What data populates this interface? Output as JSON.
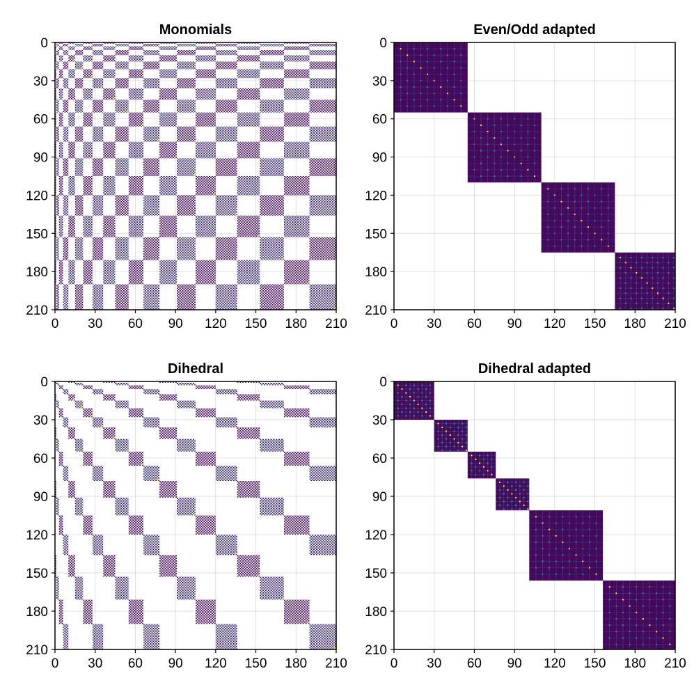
{
  "chart_data": [
    {
      "type": "heatmap",
      "title": "Monomials",
      "matrix_size": 210,
      "xlim": [
        0,
        210
      ],
      "ylim": [
        0,
        210
      ],
      "xticks": [
        "0",
        "30",
        "60",
        "90",
        "120",
        "150",
        "180",
        "210"
      ],
      "yticks": [
        "0",
        "30",
        "60",
        "90",
        "120",
        "150",
        "180",
        "210"
      ],
      "y_axis_reversed": true,
      "grid": true,
      "pattern": "checkerboard of nonzero blocks; block edges at 0,1,3,6,10,15,21,28,36,45,55,66,78,91,105,120,136,153,171,190,210; entries nonzero where parity of block row and block column match",
      "block_boundaries": [
        0,
        1,
        3,
        6,
        10,
        15,
        21,
        28,
        36,
        45,
        55,
        66,
        78,
        91,
        105,
        120,
        136,
        153,
        171,
        190,
        210
      ]
    },
    {
      "type": "heatmap",
      "title": "Even/Odd adapted",
      "matrix_size": 210,
      "xlim": [
        0,
        210
      ],
      "ylim": [
        0,
        210
      ],
      "xticks": [
        "0",
        "30",
        "60",
        "90",
        "120",
        "150",
        "180",
        "210"
      ],
      "yticks": [
        "0",
        "30",
        "60",
        "90",
        "120",
        "150",
        "180",
        "210"
      ],
      "y_axis_reversed": true,
      "grid": true,
      "pattern": "block diagonal, 4 dense blocks",
      "diagonal_blocks": [
        {
          "start": 0,
          "end": 55
        },
        {
          "start": 55,
          "end": 110
        },
        {
          "start": 110,
          "end": 165
        },
        {
          "start": 165,
          "end": 210
        }
      ]
    },
    {
      "type": "heatmap",
      "title": "Dihedral",
      "matrix_size": 210,
      "xlim": [
        0,
        210
      ],
      "ylim": [
        0,
        210
      ],
      "xticks": [
        "0",
        "30",
        "60",
        "90",
        "120",
        "150",
        "180",
        "210"
      ],
      "yticks": [
        "0",
        "30",
        "60",
        "90",
        "120",
        "150",
        "180",
        "210"
      ],
      "y_axis_reversed": true,
      "grid": true,
      "pattern": "sparse checkerboard of blocks with diagonal band structure",
      "block_boundaries": [
        0,
        1,
        3,
        6,
        10,
        15,
        21,
        28,
        36,
        45,
        55,
        66,
        78,
        91,
        105,
        120,
        136,
        153,
        171,
        190,
        210
      ]
    },
    {
      "type": "heatmap",
      "title": "Dihedral adapted",
      "matrix_size": 210,
      "xlim": [
        0,
        210
      ],
      "ylim": [
        0,
        210
      ],
      "xticks": [
        "0",
        "30",
        "60",
        "90",
        "120",
        "150",
        "180",
        "210"
      ],
      "yticks": [
        "0",
        "30",
        "60",
        "90",
        "120",
        "150",
        "180",
        "210"
      ],
      "y_axis_reversed": true,
      "grid": true,
      "pattern": "block diagonal, 6 dense blocks",
      "diagonal_blocks": [
        {
          "start": 0,
          "end": 30
        },
        {
          "start": 30,
          "end": 55
        },
        {
          "start": 55,
          "end": 76
        },
        {
          "start": 76,
          "end": 101
        },
        {
          "start": 101,
          "end": 156
        },
        {
          "start": 156,
          "end": 210
        }
      ]
    }
  ],
  "colors": {
    "base": "#46085c",
    "mid": "#3b528b",
    "teal": "#21918c",
    "green": "#5ec962",
    "yellow": "#fde725",
    "background": "#ffffff"
  }
}
